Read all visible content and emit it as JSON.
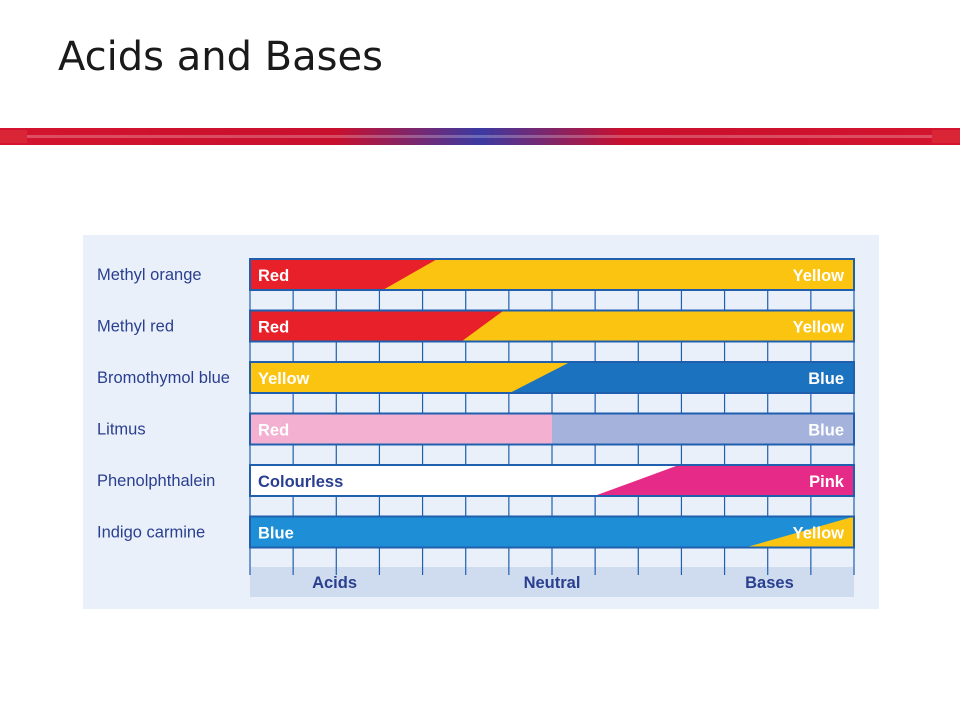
{
  "slide": {
    "title": "Acids and Bases"
  },
  "colors": {
    "accent_red": "#c8102e",
    "accent_blue": "#2c3e9a",
    "panel_bg": "#eaf0fa",
    "bar_border": "#1f5fae",
    "scale_bg": "#cfdcf0",
    "label_blue": "#2a3f8f"
  },
  "indicators": [
    {
      "name": "Methyl orange",
      "acid_color": "Red",
      "base_color": "Yellow",
      "acid_hex": "#e8202a",
      "base_hex": "#fbc411",
      "transition_start": 0.22,
      "transition_end": 0.31,
      "acid_text_hex": "#ffffff",
      "base_text_hex": "#ffffff"
    },
    {
      "name": "Methyl red",
      "acid_color": "Red",
      "base_color": "Yellow",
      "acid_hex": "#e8202a",
      "base_hex": "#fbc411",
      "transition_start": 0.35,
      "transition_end": 0.42,
      "acid_text_hex": "#ffffff",
      "base_text_hex": "#ffffff"
    },
    {
      "name": "Bromothymol blue",
      "acid_color": "Yellow",
      "base_color": "Blue",
      "acid_hex": "#fbc411",
      "base_hex": "#1b73c0",
      "transition_start": 0.43,
      "transition_end": 0.53,
      "acid_text_hex": "#ffffff",
      "base_text_hex": "#ffffff"
    },
    {
      "name": "Litmus",
      "acid_color": "Red",
      "base_color": "Blue",
      "acid_hex": "#f3b0d0",
      "base_hex": "#a4b2dc",
      "transition_start": 0.5,
      "transition_end": 0.5,
      "acid_text_hex": "#ffffff",
      "base_text_hex": "#ffffff"
    },
    {
      "name": "Phenolphthalein",
      "acid_color": "Colourless",
      "base_color": "Pink",
      "acid_hex": "#ffffff",
      "base_hex": "#e62a87",
      "transition_start": 0.57,
      "transition_end": 0.71,
      "acid_text_hex": "#2a3f8f",
      "base_text_hex": "#ffffff"
    },
    {
      "name": "Indigo carmine",
      "acid_color": "Blue",
      "base_color": "Yellow",
      "acid_hex": "#1e8fd6",
      "base_hex": "#fbc411",
      "transition_start": 0.82,
      "transition_end": 1.0,
      "acid_text_hex": "#ffffff",
      "base_text_hex": "#ffffff"
    }
  ],
  "scale": {
    "acids_label": "Acids",
    "neutral_label": "Neutral",
    "bases_label": "Bases",
    "divisions": 14
  }
}
